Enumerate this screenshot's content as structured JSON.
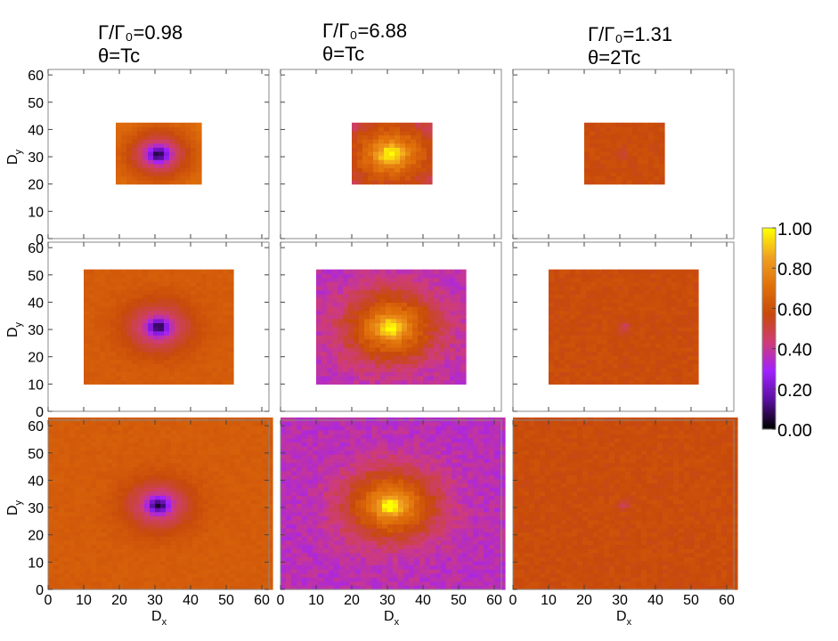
{
  "columns": [
    {
      "ratio_label": "Γ/Γ₀=0.98",
      "theta_label": "θ=Tc"
    },
    {
      "ratio_label": "Γ/Γ₀=6.88",
      "theta_label": "θ=Tc"
    },
    {
      "ratio_label": "Γ/Γ₀=1.31",
      "theta_label": "θ=2Tc"
    }
  ],
  "axes": {
    "xlabel": "D",
    "xlabel_sub": "x",
    "ylabel": "D",
    "ylabel_sub": "y",
    "xlim": [
      0,
      62
    ],
    "ylim": [
      0,
      62
    ],
    "xticks": [
      "0",
      "10",
      "20",
      "30",
      "40",
      "50",
      "60"
    ],
    "yticks": [
      "0",
      "10",
      "20",
      "30",
      "40",
      "50",
      "60"
    ]
  },
  "colorbar": {
    "ticks": [
      "0.00",
      "0.20",
      "0.40",
      "0.60",
      "0.80",
      "1.00"
    ],
    "range": [
      0,
      1
    ],
    "colormap": [
      "#000000",
      "#5a0fa0",
      "#a021ff",
      "#cf3c78",
      "#c84a0a",
      "#e0700a",
      "#f0a020",
      "#ffff00"
    ]
  },
  "chart_data": {
    "type": "heatmap",
    "grid_rows": 3,
    "grid_cols": 3,
    "panels": [
      {
        "row": 0,
        "col": 0,
        "extent_x": [
          19,
          42
        ],
        "extent_y": [
          20,
          42
        ],
        "center": [
          31,
          31
        ],
        "background": 0.68,
        "center_value": 0.05,
        "edge_value": 0.72,
        "pattern": "dip"
      },
      {
        "row": 0,
        "col": 1,
        "extent_x": [
          20,
          42
        ],
        "extent_y": [
          20,
          42
        ],
        "center": [
          31,
          31
        ],
        "background": 0.4,
        "center_value": 1.0,
        "edge_value": 0.38,
        "pattern": "peak"
      },
      {
        "row": 0,
        "col": 2,
        "extent_x": [
          20,
          42
        ],
        "extent_y": [
          20,
          42
        ],
        "center": [
          31,
          31
        ],
        "background": 0.58,
        "center_value": 0.52,
        "edge_value": 0.58,
        "pattern": "flat"
      },
      {
        "row": 1,
        "col": 0,
        "extent_x": [
          10,
          52
        ],
        "extent_y": [
          10,
          52
        ],
        "center": [
          31,
          31
        ],
        "background": 0.63,
        "center_value": 0.05,
        "edge_value": 0.64,
        "pattern": "dip"
      },
      {
        "row": 1,
        "col": 1,
        "extent_x": [
          10,
          52
        ],
        "extent_y": [
          10,
          52
        ],
        "center": [
          31,
          31
        ],
        "background": 0.38,
        "center_value": 1.0,
        "edge_value": 0.36,
        "pattern": "peak"
      },
      {
        "row": 1,
        "col": 2,
        "extent_x": [
          10,
          52
        ],
        "extent_y": [
          10,
          52
        ],
        "center": [
          31,
          31
        ],
        "background": 0.58,
        "center_value": 0.45,
        "edge_value": 0.58,
        "pattern": "flat"
      },
      {
        "row": 2,
        "col": 0,
        "extent_x": [
          0,
          62
        ],
        "extent_y": [
          0,
          62
        ],
        "center": [
          31,
          31
        ],
        "background": 0.62,
        "center_value": 0.05,
        "edge_value": 0.64,
        "pattern": "dip"
      },
      {
        "row": 2,
        "col": 1,
        "extent_x": [
          0,
          62
        ],
        "extent_y": [
          0,
          62
        ],
        "center": [
          31,
          31
        ],
        "background": 0.38,
        "center_value": 1.0,
        "edge_value": 0.36,
        "pattern": "peak"
      },
      {
        "row": 2,
        "col": 2,
        "extent_x": [
          0,
          62
        ],
        "extent_y": [
          0,
          62
        ],
        "center": [
          31,
          31
        ],
        "background": 0.58,
        "center_value": 0.45,
        "edge_value": 0.58,
        "pattern": "flat"
      }
    ]
  }
}
